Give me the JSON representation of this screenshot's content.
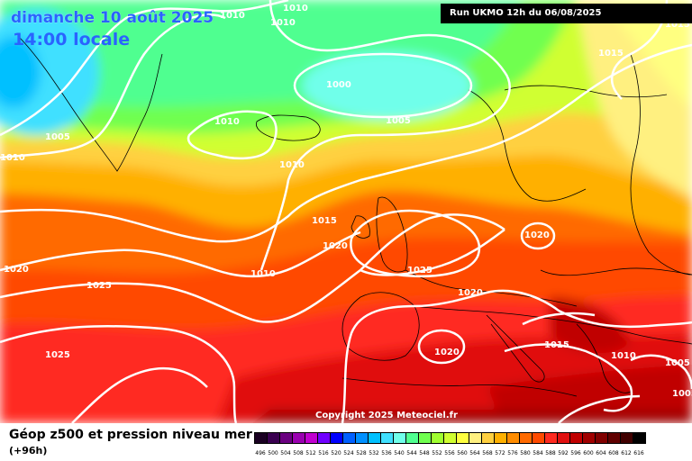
{
  "map": {
    "date": "dimanche 10 août 2025",
    "time": "14:00 locale",
    "run": "Run UKMO 12h du 06/08/2025",
    "copyright": "Copyright 2025 Meteociel.fr"
  },
  "footer": {
    "title": "Géop z500 et pression niveau mer",
    "hour": "(+96h)"
  },
  "legend": {
    "labels": [
      "496",
      "500",
      "504",
      "508",
      "512",
      "516",
      "520",
      "524",
      "528",
      "532",
      "536",
      "540",
      "544",
      "548",
      "552",
      "556",
      "560",
      "564",
      "568",
      "572",
      "576",
      "580",
      "584",
      "588",
      "592",
      "596",
      "600",
      "604",
      "608",
      "612",
      "616"
    ],
    "colors": [
      "#1a0022",
      "#3a0050",
      "#6a0080",
      "#9a00b0",
      "#c000d0",
      "#7000ff",
      "#0000ff",
      "#0060ff",
      "#0090ff",
      "#00c0ff",
      "#40e0ff",
      "#70ffea",
      "#50ff90",
      "#70ff50",
      "#a0ff30",
      "#d0ff30",
      "#ffff40",
      "#fff080",
      "#ffd040",
      "#ffb000",
      "#ff8c00",
      "#ff6a00",
      "#ff4a00",
      "#ff2a20",
      "#e01010",
      "#c00000",
      "#a00000",
      "#800000",
      "#600000",
      "#400000",
      "#000000"
    ]
  },
  "isobars": [
    {
      "text": "1010"
    },
    {
      "text": "1010"
    },
    {
      "text": "1010"
    },
    {
      "text": "1000"
    },
    {
      "text": "1010"
    },
    {
      "text": "1005"
    },
    {
      "text": "1005"
    },
    {
      "text": "1010"
    },
    {
      "text": "1010"
    },
    {
      "text": "1015"
    },
    {
      "text": "1015"
    },
    {
      "text": "1020"
    },
    {
      "text": "1020"
    },
    {
      "text": "1010"
    },
    {
      "text": "1025"
    },
    {
      "text": "1025"
    },
    {
      "text": "1020"
    },
    {
      "text": "1020"
    },
    {
      "text": "1025"
    },
    {
      "text": "1020"
    },
    {
      "text": "1015"
    },
    {
      "text": "1010"
    },
    {
      "text": "1005"
    },
    {
      "text": "1005"
    },
    {
      "text": "1015"
    }
  ]
}
